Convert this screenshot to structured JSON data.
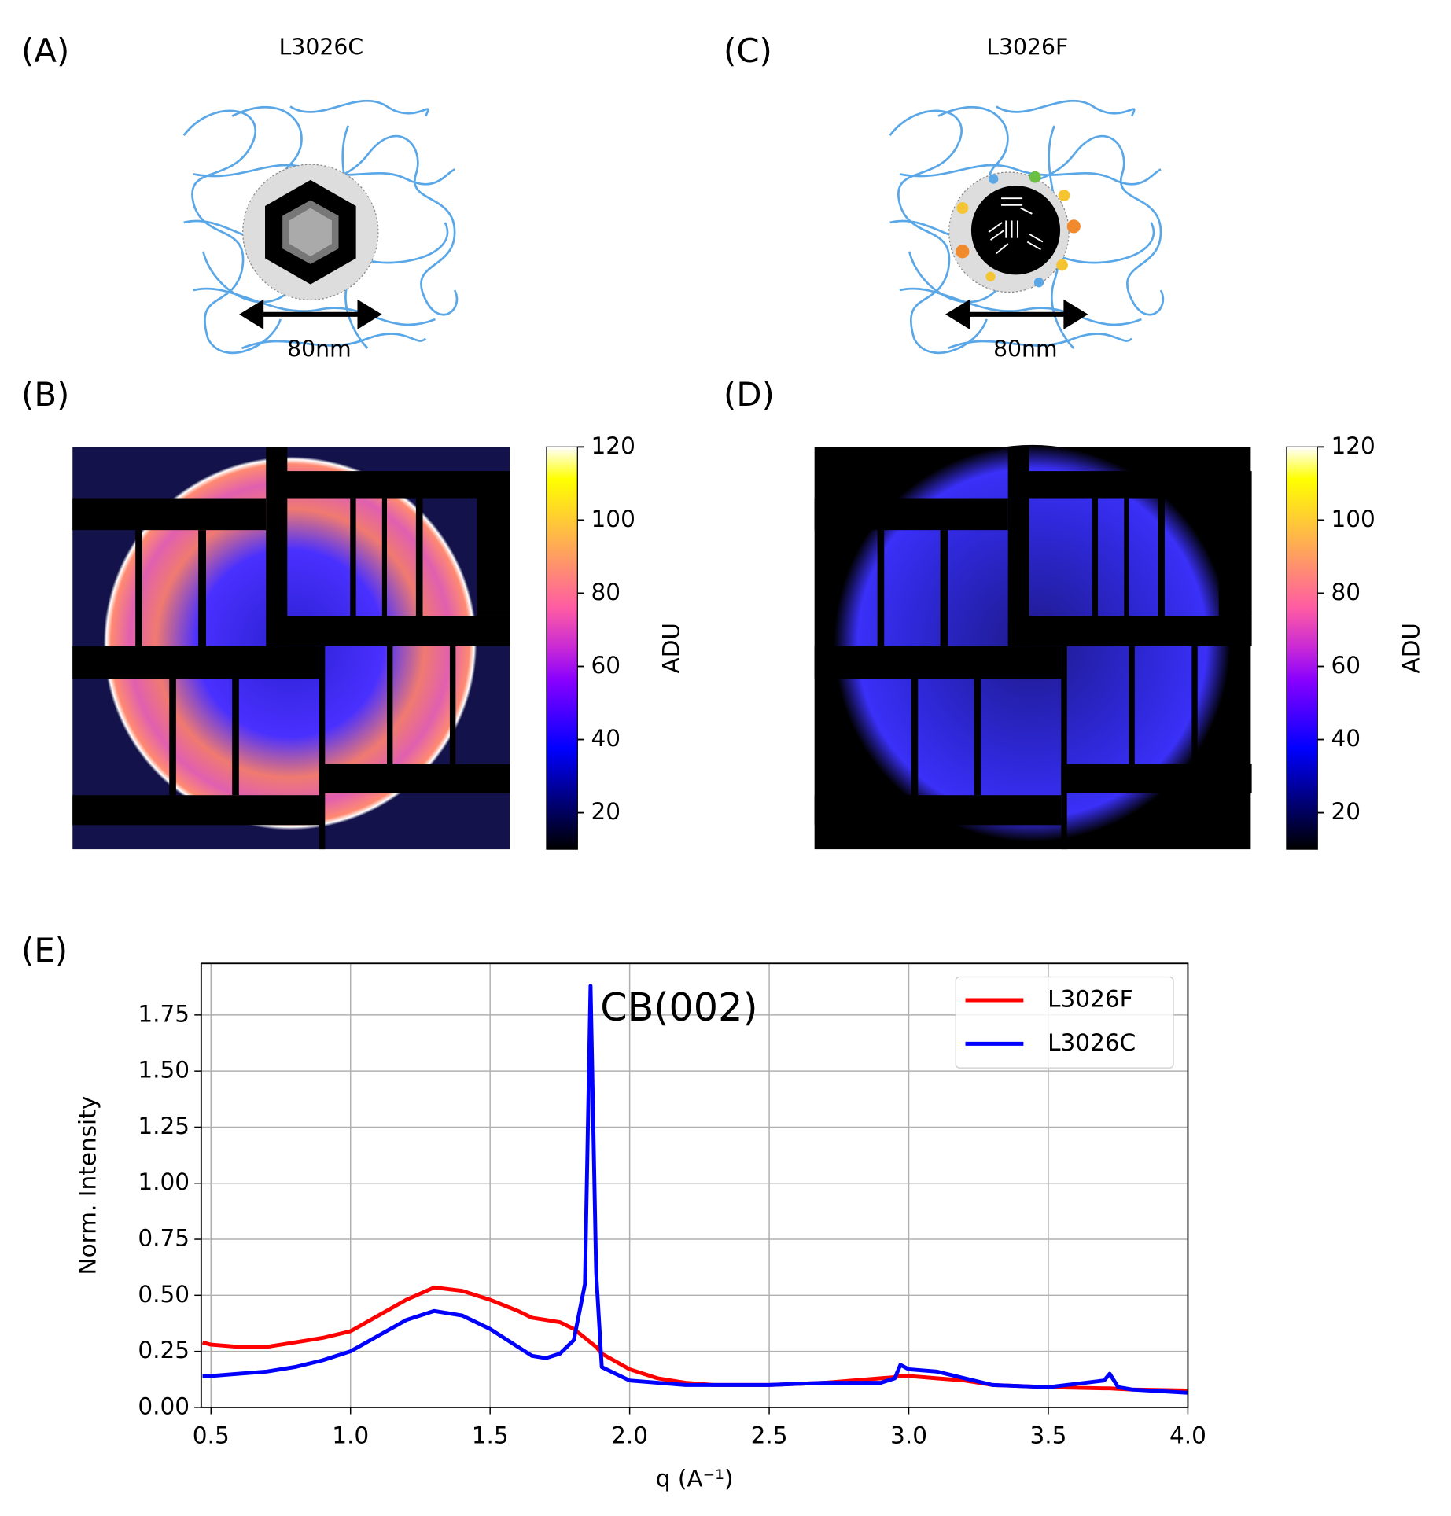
{
  "panel_labels": [
    "(A)",
    "(B)",
    "(C)",
    "(D)",
    "(E)"
  ],
  "diagrams": [
    {
      "title": "L3026C",
      "scale_label": "80nm"
    },
    {
      "title": "L3026F",
      "scale_label": "80nm"
    }
  ],
  "chart_data": [
    {
      "type": "heatmap",
      "colormap": "gnuplot2",
      "colorbar_label": "ADU",
      "clim": [
        10,
        120
      ],
      "cticks": [
        20,
        40,
        60,
        80,
        100,
        120
      ]
    },
    {
      "type": "heatmap",
      "colormap": "gnuplot2",
      "colorbar_label": "ADU",
      "clim": [
        10,
        120
      ],
      "cticks": [
        20,
        40,
        60,
        80,
        100,
        120
      ]
    },
    {
      "type": "line",
      "xlabel": "q  (A⁻¹)",
      "ylabel": "Norm. Intensity",
      "annotations": [
        "CB(002)"
      ],
      "xlim": [
        0.465,
        4.0
      ],
      "ylim": [
        0,
        1.98
      ],
      "xticks": [
        0.5,
        {
          "value": 1,
          "label": "1.0"
        },
        1.5,
        {
          "value": 2,
          "label": "2.0"
        },
        2.5,
        {
          "value": 3,
          "label": "3.0"
        },
        3.5,
        {
          "value": 4,
          "label": "4.0"
        }
      ],
      "yticks": [
        {
          "value": 0,
          "label": "0.00"
        },
        {
          "value": 0.25,
          "label": "0.25"
        },
        {
          "value": 0.5,
          "label": "0.50"
        },
        {
          "value": 0.75,
          "label": "0.75"
        },
        {
          "value": 1,
          "label": "1.00"
        },
        {
          "value": 1.25,
          "label": "1.25"
        },
        {
          "value": 1.5,
          "label": "1.50"
        },
        {
          "value": 1.75,
          "label": "1.75"
        }
      ],
      "grid": true,
      "legend": "upper-right",
      "x": [
        0.47,
        0.5,
        0.6,
        0.7,
        0.8,
        0.9,
        1.0,
        1.1,
        1.2,
        1.3,
        1.4,
        1.5,
        1.6,
        1.65,
        1.7,
        1.75,
        1.8,
        1.84,
        1.86,
        1.88,
        1.9,
        2.0,
        2.1,
        2.2,
        2.3,
        2.5,
        2.7,
        2.9,
        2.95,
        2.97,
        3.0,
        3.1,
        3.2,
        3.3,
        3.5,
        3.7,
        3.72,
        3.75,
        3.8,
        4.0
      ],
      "series": [
        {
          "name": "L3026F",
          "color": "#ff0000",
          "values": [
            0.29,
            0.28,
            0.27,
            0.27,
            0.29,
            0.31,
            0.34,
            0.41,
            0.48,
            0.535,
            0.52,
            0.48,
            0.43,
            0.4,
            0.39,
            0.38,
            0.35,
            0.31,
            0.29,
            0.27,
            0.24,
            0.17,
            0.13,
            0.11,
            0.1,
            0.1,
            0.11,
            0.13,
            0.135,
            0.14,
            0.14,
            0.13,
            0.12,
            0.1,
            0.09,
            0.085,
            0.085,
            0.083,
            0.08,
            0.075
          ]
        },
        {
          "name": "L3026C",
          "color": "#0000ff",
          "values": [
            0.14,
            0.14,
            0.15,
            0.16,
            0.18,
            0.21,
            0.25,
            0.32,
            0.39,
            0.43,
            0.41,
            0.35,
            0.27,
            0.23,
            0.22,
            0.24,
            0.3,
            0.55,
            1.88,
            0.6,
            0.18,
            0.12,
            0.11,
            0.1,
            0.1,
            0.1,
            0.11,
            0.11,
            0.13,
            0.19,
            0.17,
            0.16,
            0.13,
            0.1,
            0.09,
            0.12,
            0.15,
            0.09,
            0.08,
            0.065
          ]
        }
      ]
    }
  ]
}
